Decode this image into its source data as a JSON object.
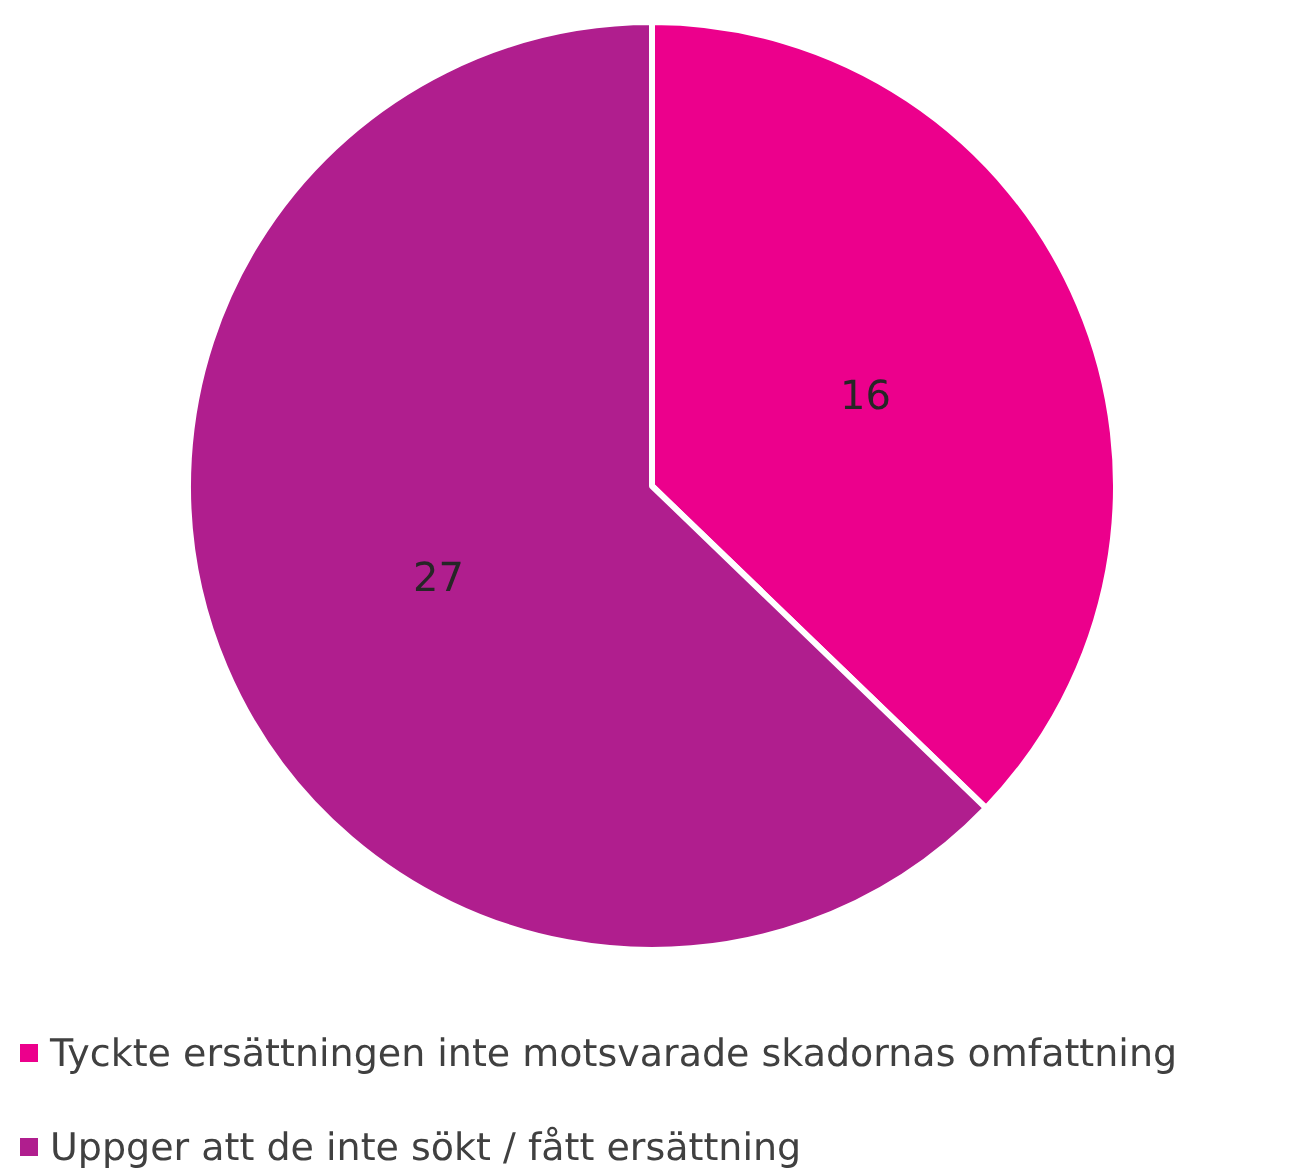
{
  "chart_data": {
    "type": "pie",
    "categories": [
      "Tyckte ersättningen inte motsvarade skadornas omfattning",
      "Uppger att de inte sökt / fått ersättning"
    ],
    "values": [
      16,
      27
    ],
    "colors": [
      "#ec008c",
      "#b01e8e"
    ],
    "data_labels": true,
    "legend": "bottom"
  }
}
